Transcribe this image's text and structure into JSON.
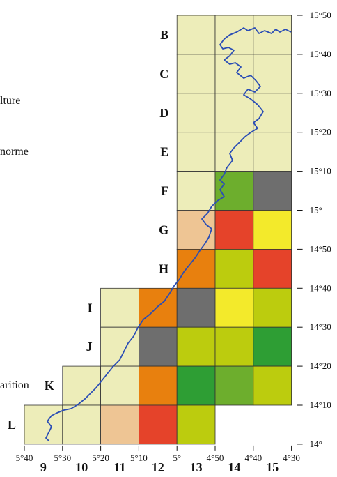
{
  "legend_fragments": [
    "lture",
    "norme",
    "arition"
  ],
  "colors": {
    "pale": "#EDEDB9",
    "peach": "#EEC594",
    "orange": "#E8800E",
    "red": "#E5432A",
    "yellow": "#F3EA2B",
    "yellow_green": "#BCCC0E",
    "olive_green": "#6DAE2D",
    "green": "#2E9E34",
    "gray": "#6E6E6E",
    "river": "#2A4DB5",
    "grid_line": "#333333"
  },
  "rows": [
    "B",
    "C",
    "D",
    "E",
    "F",
    "G",
    "H",
    "I",
    "J",
    "K",
    "L"
  ],
  "columns": [
    "9",
    "10",
    "11",
    "12",
    "13",
    "14",
    "15"
  ],
  "longitude_ticks": [
    "5°40",
    "5°30",
    "5°20",
    "5°10",
    "5°",
    "4°50",
    "4°40",
    "4°30"
  ],
  "latitude_ticks": [
    "15°50",
    "15°40",
    "15°30",
    "15°20",
    "15°10",
    "15°",
    "14°50",
    "14°40",
    "14°30",
    "14°20",
    "14°10",
    "14°"
  ],
  "cells": {
    "B": {
      "13": "pale",
      "14": "pale",
      "15": "pale"
    },
    "C": {
      "13": "pale",
      "14": "pale",
      "15": "pale"
    },
    "D": {
      "13": "pale",
      "14": "pale",
      "15": "pale"
    },
    "E": {
      "13": "pale",
      "14": "pale",
      "15": "pale"
    },
    "F": {
      "13": "pale",
      "14": "olive_green",
      "15": "gray"
    },
    "G": {
      "13": "peach",
      "14": "red",
      "15": "yellow"
    },
    "H": {
      "13": "orange",
      "14": "yellow_green",
      "15": "red"
    },
    "I": {
      "11": "pale",
      "12": "orange",
      "13": "gray",
      "14": "yellow",
      "15": "yellow_green"
    },
    "J": {
      "11": "pale",
      "12": "gray",
      "13": "yellow_green",
      "14": "yellow_green",
      "15": "green"
    },
    "K": {
      "10": "pale",
      "11": "pale",
      "12": "orange",
      "13": "green",
      "14": "olive_green",
      "15": "yellow_green"
    },
    "L": {
      "9": "pale",
      "10": "pale",
      "11": "peach",
      "12": "red",
      "13": "yellow_green"
    }
  }
}
